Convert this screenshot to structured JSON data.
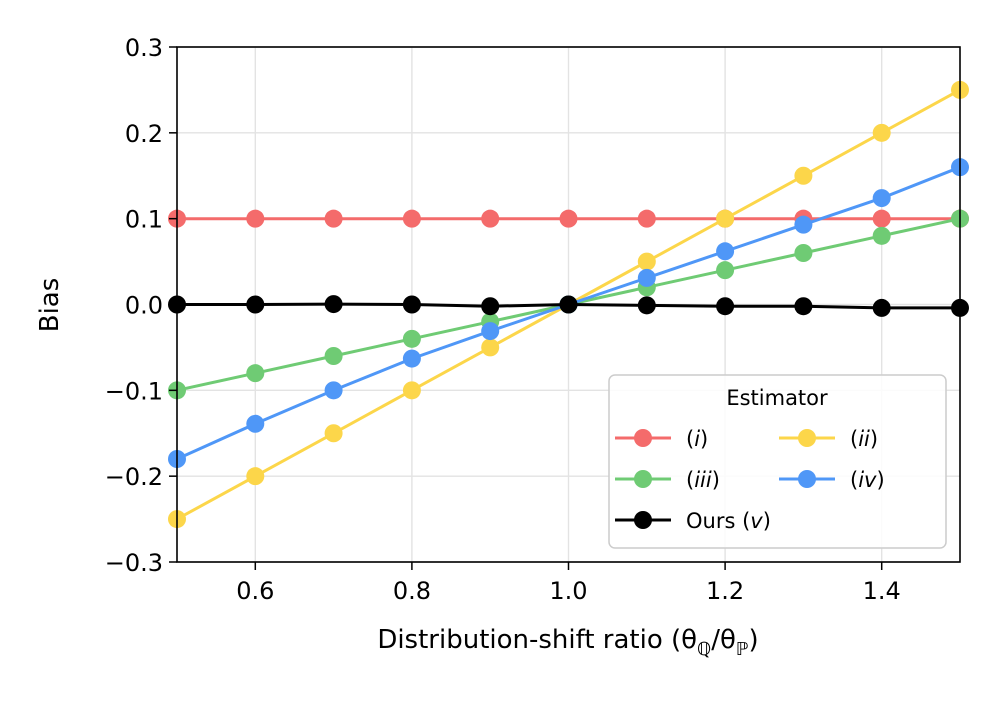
{
  "chart_data": {
    "type": "line",
    "title": "",
    "xlabel": "Distribution-shift ratio (θ",
    "xlabel_sub1": "ℚ",
    "xlabel_mid": "/θ",
    "xlabel_sub2": "ℙ",
    "xlabel_end": ")",
    "ylabel": "Bias",
    "xlim": [
      0.5,
      1.5
    ],
    "ylim": [
      -0.3,
      0.3
    ],
    "x_ticks": [
      0.6,
      0.8,
      1.0,
      1.2,
      1.4
    ],
    "x_tick_labels": [
      "0.6",
      "0.8",
      "1.0",
      "1.2",
      "1.4"
    ],
    "y_ticks": [
      -0.3,
      -0.2,
      -0.1,
      0.0,
      0.1,
      0.2,
      0.3
    ],
    "y_tick_labels": [
      "−0.3",
      "−0.2",
      "−0.1",
      "0.0",
      "0.1",
      "0.2",
      "0.3"
    ],
    "grid": true,
    "x": [
      0.5,
      0.6,
      0.7,
      0.8,
      0.9,
      1.0,
      1.1,
      1.2,
      1.3,
      1.4,
      1.5
    ],
    "series": [
      {
        "name": "(i)",
        "label_pre": "(",
        "label_it": "i",
        "label_post": ")",
        "color": "#f46b6b",
        "values": [
          0.1,
          0.1,
          0.1,
          0.1,
          0.1,
          0.1,
          0.1,
          0.1,
          0.1,
          0.1,
          0.1
        ]
      },
      {
        "name": "(ii)",
        "label_pre": "(",
        "label_it": "ii",
        "label_post": ")",
        "color": "#fcd64a",
        "values": [
          -0.25,
          -0.2,
          -0.15,
          -0.1,
          -0.05,
          0.0,
          0.05,
          0.1,
          0.15,
          0.2,
          0.25
        ]
      },
      {
        "name": "(iii)",
        "label_pre": "(",
        "label_it": "iii",
        "label_post": ")",
        "color": "#6fcb74",
        "values": [
          -0.1,
          -0.08,
          -0.06,
          -0.04,
          -0.02,
          0.0,
          0.02,
          0.04,
          0.06,
          0.08,
          0.1
        ]
      },
      {
        "name": "(iv)",
        "label_pre": "(",
        "label_it": "iv",
        "label_post": ")",
        "color": "#4f97f7",
        "values": [
          -0.18,
          -0.139,
          -0.1,
          -0.063,
          -0.031,
          0.0,
          0.031,
          0.062,
          0.093,
          0.124,
          0.16
        ]
      },
      {
        "name": "Ours (v)",
        "label_pre": "Ours (",
        "label_it": "v",
        "label_post": ")",
        "color": "#000000",
        "values": [
          0.0,
          0.0,
          0.0005,
          0.0,
          -0.002,
          0.0,
          -0.001,
          -0.002,
          -0.002,
          -0.004,
          -0.004
        ]
      }
    ],
    "legend": {
      "title": "Estimator",
      "placement": "lower-right",
      "columns": 2
    }
  }
}
